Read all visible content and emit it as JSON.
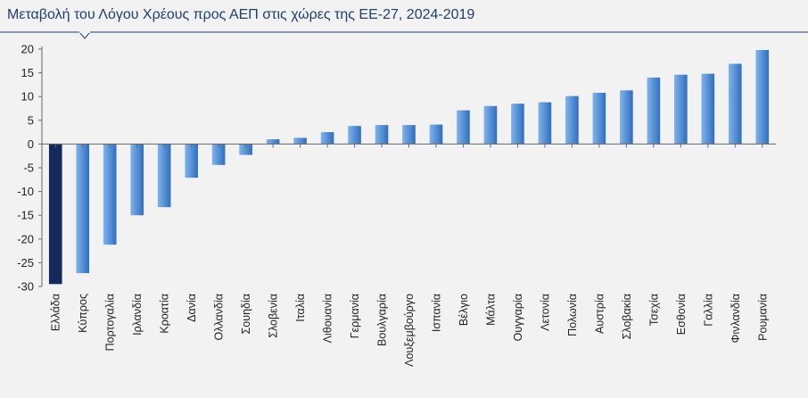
{
  "chart_data": {
    "type": "bar",
    "title": "Μεταβολή του Λόγου Χρέους προς ΑΕΠ στις χώρες της ΕΕ-27, 2024-2019",
    "xlabel": "",
    "ylabel": "",
    "ylim": [
      -30,
      20
    ],
    "yticks": [
      20,
      15,
      10,
      5,
      0,
      -5,
      -10,
      -15,
      -20,
      -25,
      -30
    ],
    "grid": false,
    "categories": [
      "Ελλάδα",
      "Κύπρος",
      "Πορτογαλία",
      "Ιρλανδία",
      "Κροατία",
      "Δανία",
      "Ολλανδία",
      "Σουηδία",
      "Σλοβενία",
      "Ιταλία",
      "Λιθουανία",
      "Γερμανία",
      "Βουλγαρία",
      "Λουξεμβούργο",
      "Ισπανία",
      "Βέλγιο",
      "Μάλτα",
      "Ουγγαρία",
      "Λετονία",
      "Πολωνία",
      "Αυστρία",
      "Σλοβακία",
      "Τσεχία",
      "Εσθονία",
      "Γαλλία",
      "Φινλανδία",
      "Ρουμανία"
    ],
    "values": [
      -29.5,
      -27.2,
      -21.2,
      -15.0,
      -13.3,
      -7.1,
      -4.4,
      -2.3,
      1.0,
      1.3,
      2.5,
      3.8,
      4.0,
      4.0,
      4.1,
      7.1,
      8.0,
      8.5,
      8.8,
      10.1,
      10.8,
      11.3,
      14.0,
      14.6,
      14.8,
      16.9,
      19.8
    ],
    "highlight_color": "#142a5c",
    "bar_color_top": "#7fb3ea",
    "bar_color_bottom": "#2f6ec0"
  }
}
